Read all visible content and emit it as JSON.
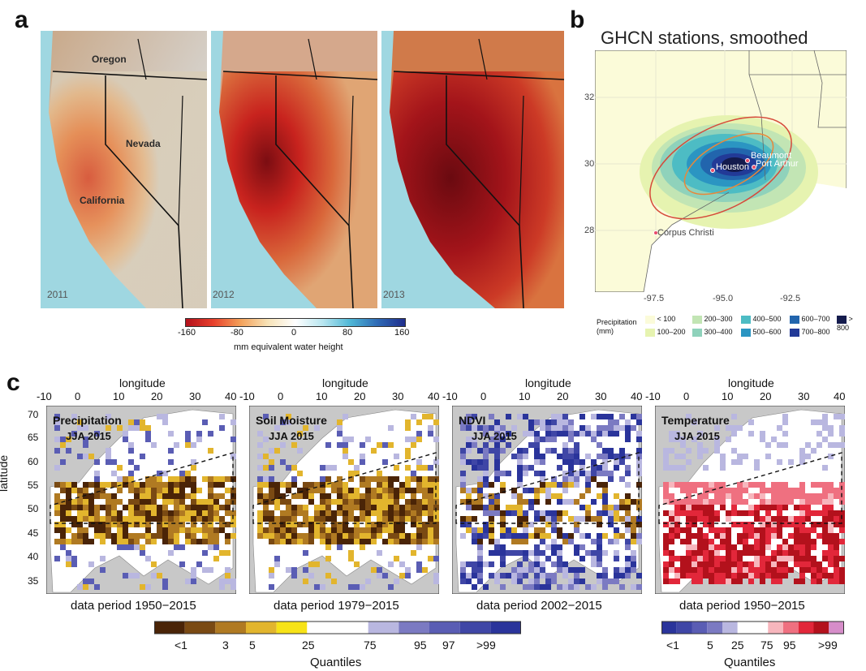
{
  "panel_a": {
    "letter": "a",
    "maps": [
      {
        "year": "2011",
        "labels": [
          "Oregon",
          "Nevada",
          "California"
        ]
      },
      {
        "year": "2012",
        "labels": []
      },
      {
        "year": "2013",
        "labels": []
      }
    ],
    "colorbar": {
      "ticks": [
        "-160",
        "-80",
        "0",
        "80",
        "160"
      ],
      "label": "mm  equivalent water height",
      "colors": [
        "#b3111c",
        "#e8402c",
        "#f3a15a",
        "#f7e3b8",
        "#ffffff",
        "#b8e6f0",
        "#4fb7d6",
        "#2e6ab5",
        "#1f2d8c"
      ]
    }
  },
  "panel_b": {
    "letter": "b",
    "title": "GHCN stations, smoothed",
    "y_ticks": [
      "32",
      "30",
      "28"
    ],
    "x_ticks": [
      "-97.5",
      "-95.0",
      "-92.5"
    ],
    "cities": [
      "Beaumont",
      "Houston",
      "Port Arthur",
      "Corpus Christi"
    ],
    "legend_title": "Precipitation\n(mm)",
    "legend_title_l1": "Precipitation",
    "legend_title_l2": "(mm)",
    "legend": [
      {
        "label": "< 100",
        "color": "#fbfbd9"
      },
      {
        "label": "100–200",
        "color": "#e6f3b0"
      },
      {
        "label": "200–300",
        "color": "#c2e5b4"
      },
      {
        "label": "300–400",
        "color": "#8fd2bb"
      },
      {
        "label": "400–500",
        "color": "#4dbcc4"
      },
      {
        "label": "500–600",
        "color": "#2b95c2"
      },
      {
        "label": "600–700",
        "color": "#2265ad"
      },
      {
        "label": "700–800",
        "color": "#223a97"
      },
      {
        "label": "> 800",
        "color": "#141b4d"
      }
    ]
  },
  "panel_c": {
    "letter": "c",
    "top_axis_label": "longitude",
    "lon_ticks": [
      "-10",
      "0",
      "10",
      "20",
      "30",
      "40"
    ],
    "lat_label": "latitude",
    "lat_ticks": [
      "70",
      "65",
      "60",
      "55",
      "50",
      "45",
      "40",
      "35"
    ],
    "maps": [
      {
        "title": "Precipitation",
        "subtitle": "JJA 2015",
        "period": "data period 1950−2015",
        "kind": "drought"
      },
      {
        "title": "Soil Moisture",
        "subtitle": "JJA 2015",
        "period": "data period 1979−2015",
        "kind": "drought"
      },
      {
        "title": "NDVI",
        "subtitle": "JJA 2015",
        "period": "data period 2002−2015",
        "kind": "ndvi"
      },
      {
        "title": "Temperature",
        "subtitle": "JJA 2015",
        "period": "data period 1950−2015",
        "kind": "heat"
      }
    ],
    "colorbar_left": {
      "colors": [
        "#4a2407",
        "#7a4a13",
        "#b07a22",
        "#e2b52d",
        "#f7e317",
        "#ffffff",
        "#ffffff",
        "#b9b7e0",
        "#7b7ac2",
        "#5a5db4",
        "#3f46a6",
        "#2a349b"
      ],
      "ticks": [
        "<1",
        "3",
        "5",
        "25",
        "75",
        "95",
        "97",
        ">99"
      ],
      "label": "Quantiles"
    },
    "colorbar_right": {
      "colors": [
        "#2a349b",
        "#3f46a6",
        "#5a5db4",
        "#7b7ac2",
        "#b9b7e0",
        "#ffffff",
        "#ffffff",
        "#f7b6bd",
        "#ef7080",
        "#e2273a",
        "#b3111c",
        "#d68dc9"
      ],
      "ticks": [
        "<1",
        "5",
        "25",
        "75",
        "95",
        ">99"
      ],
      "label": "Quantiles"
    }
  }
}
